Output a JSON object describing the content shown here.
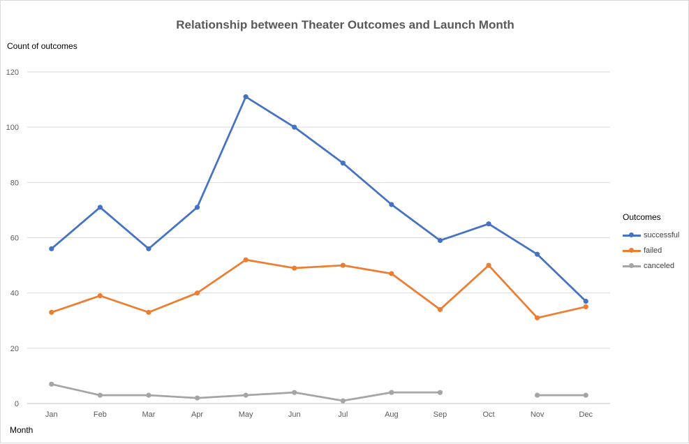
{
  "chart_data": {
    "type": "line",
    "title": "Relationship between Theater Outcomes and Launch Month",
    "ylabel": "Count of outcomes",
    "xlabel": "Month",
    "ylim": [
      0,
      120
    ],
    "yticks": [
      0,
      20,
      40,
      60,
      80,
      100,
      120
    ],
    "categories": [
      "Jan",
      "Feb",
      "Mar",
      "Apr",
      "May",
      "Jun",
      "Jul",
      "Aug",
      "Sep",
      "Oct",
      "Nov",
      "Dec"
    ],
    "grid": true,
    "legend_title": "Outcomes",
    "legend_position": "right",
    "series": [
      {
        "name": "successful",
        "color": "#4472C4",
        "values": [
          56,
          71,
          56,
          71,
          111,
          100,
          87,
          72,
          59,
          65,
          54,
          37
        ]
      },
      {
        "name": "failed",
        "color": "#ED7D31",
        "values": [
          33,
          39,
          33,
          40,
          52,
          49,
          50,
          47,
          34,
          50,
          31,
          35
        ]
      },
      {
        "name": "canceled",
        "color": "#A5A5A5",
        "values": [
          7,
          3,
          3,
          2,
          3,
          4,
          1,
          4,
          4,
          null,
          3,
          3
        ]
      }
    ]
  }
}
